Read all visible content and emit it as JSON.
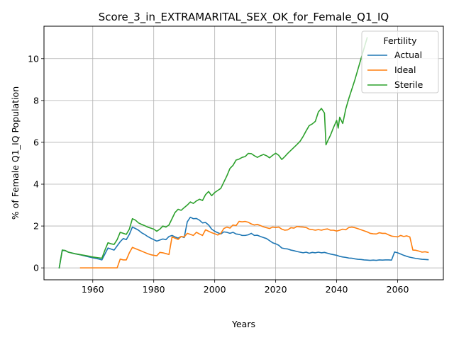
{
  "chart_data": {
    "type": "line",
    "title": "Score_3_in_EXTRAMARITAL_SEX_OK_for_Female_Q1_IQ",
    "xlabel": "Years",
    "ylabel": "% of Female Q1_IQ Population",
    "xlim": [
      1944,
      2075
    ],
    "ylim": [
      -0.57,
      11.55
    ],
    "xticks": [
      1960,
      1980,
      2000,
      2020,
      2040,
      2060
    ],
    "yticks": [
      0,
      2,
      4,
      6,
      8,
      10
    ],
    "grid": true,
    "legend": {
      "title": "Fertility",
      "placement": "top-right"
    },
    "series": [
      {
        "name": "Actual",
        "color": "#1f77b4",
        "points": [
          [
            1949,
            0.0
          ],
          [
            1950,
            0.85
          ],
          [
            1951,
            0.82
          ],
          [
            1952,
            0.75
          ],
          [
            1954,
            0.68
          ],
          [
            1956,
            0.62
          ],
          [
            1958,
            0.55
          ],
          [
            1960,
            0.48
          ],
          [
            1962,
            0.42
          ],
          [
            1963,
            0.38
          ],
          [
            1965,
            0.95
          ],
          [
            1966,
            0.9
          ],
          [
            1967,
            0.85
          ],
          [
            1968,
            1.05
          ],
          [
            1969,
            1.25
          ],
          [
            1970,
            1.4
          ],
          [
            1971,
            1.35
          ],
          [
            1972,
            1.6
          ],
          [
            1973,
            1.95
          ],
          [
            1974,
            1.88
          ],
          [
            1975,
            1.8
          ],
          [
            1976,
            1.68
          ],
          [
            1977,
            1.6
          ],
          [
            1978,
            1.5
          ],
          [
            1979,
            1.42
          ],
          [
            1980,
            1.35
          ],
          [
            1981,
            1.28
          ],
          [
            1982,
            1.33
          ],
          [
            1983,
            1.38
          ],
          [
            1984,
            1.35
          ],
          [
            1985,
            1.5
          ],
          [
            1986,
            1.55
          ],
          [
            1987,
            1.48
          ],
          [
            1988,
            1.42
          ],
          [
            1989,
            1.5
          ],
          [
            1990,
            1.45
          ],
          [
            1991,
            2.2
          ],
          [
            1992,
            2.42
          ],
          [
            1993,
            2.35
          ],
          [
            1994,
            2.36
          ],
          [
            1995,
            2.28
          ],
          [
            1996,
            2.15
          ],
          [
            1997,
            2.17
          ],
          [
            1998,
            2.05
          ],
          [
            1999,
            1.85
          ],
          [
            2000,
            1.75
          ],
          [
            2001,
            1.68
          ],
          [
            2002,
            1.62
          ],
          [
            2003,
            1.72
          ],
          [
            2004,
            1.7
          ],
          [
            2005,
            1.65
          ],
          [
            2006,
            1.7
          ],
          [
            2007,
            1.62
          ],
          [
            2008,
            1.6
          ],
          [
            2009,
            1.55
          ],
          [
            2010,
            1.55
          ],
          [
            2011,
            1.58
          ],
          [
            2012,
            1.65
          ],
          [
            2013,
            1.55
          ],
          [
            2014,
            1.56
          ],
          [
            2015,
            1.5
          ],
          [
            2016,
            1.45
          ],
          [
            2017,
            1.4
          ],
          [
            2018,
            1.3
          ],
          [
            2019,
            1.2
          ],
          [
            2020,
            1.15
          ],
          [
            2021,
            1.08
          ],
          [
            2022,
            0.95
          ],
          [
            2023,
            0.92
          ],
          [
            2024,
            0.9
          ],
          [
            2025,
            0.85
          ],
          [
            2026,
            0.82
          ],
          [
            2027,
            0.78
          ],
          [
            2028,
            0.75
          ],
          [
            2029,
            0.72
          ],
          [
            2030,
            0.75
          ],
          [
            2031,
            0.7
          ],
          [
            2032,
            0.74
          ],
          [
            2033,
            0.72
          ],
          [
            2034,
            0.75
          ],
          [
            2035,
            0.72
          ],
          [
            2036,
            0.74
          ],
          [
            2037,
            0.7
          ],
          [
            2038,
            0.66
          ],
          [
            2039,
            0.63
          ],
          [
            2040,
            0.6
          ],
          [
            2041,
            0.55
          ],
          [
            2042,
            0.52
          ],
          [
            2043,
            0.5
          ],
          [
            2044,
            0.47
          ],
          [
            2045,
            0.46
          ],
          [
            2046,
            0.43
          ],
          [
            2047,
            0.41
          ],
          [
            2048,
            0.4
          ],
          [
            2049,
            0.38
          ],
          [
            2050,
            0.37
          ],
          [
            2051,
            0.36
          ],
          [
            2052,
            0.37
          ],
          [
            2053,
            0.36
          ],
          [
            2054,
            0.38
          ],
          [
            2055,
            0.37
          ],
          [
            2056,
            0.38
          ],
          [
            2057,
            0.38
          ],
          [
            2058,
            0.37
          ],
          [
            2059,
            0.76
          ],
          [
            2060,
            0.72
          ],
          [
            2061,
            0.66
          ],
          [
            2062,
            0.6
          ],
          [
            2063,
            0.55
          ],
          [
            2064,
            0.51
          ],
          [
            2065,
            0.48
          ],
          [
            2066,
            0.45
          ],
          [
            2067,
            0.43
          ],
          [
            2068,
            0.41
          ],
          [
            2069,
            0.4
          ],
          [
            2070,
            0.39
          ]
        ]
      },
      {
        "name": "Ideal",
        "color": "#ff7f0e",
        "points": [
          [
            1956,
            0.0
          ],
          [
            1960,
            0.0
          ],
          [
            1965,
            0.0
          ],
          [
            1968,
            0.0
          ],
          [
            1969,
            0.42
          ],
          [
            1970,
            0.38
          ],
          [
            1971,
            0.38
          ],
          [
            1972,
            0.72
          ],
          [
            1973,
            0.98
          ],
          [
            1974,
            0.92
          ],
          [
            1975,
            0.86
          ],
          [
            1976,
            0.8
          ],
          [
            1977,
            0.74
          ],
          [
            1978,
            0.68
          ],
          [
            1979,
            0.63
          ],
          [
            1980,
            0.6
          ],
          [
            1981,
            0.58
          ],
          [
            1982,
            0.74
          ],
          [
            1983,
            0.72
          ],
          [
            1984,
            0.68
          ],
          [
            1985,
            0.64
          ],
          [
            1986,
            1.48
          ],
          [
            1987,
            1.42
          ],
          [
            1988,
            1.36
          ],
          [
            1989,
            1.5
          ],
          [
            1990,
            1.48
          ],
          [
            1991,
            1.65
          ],
          [
            1992,
            1.6
          ],
          [
            1993,
            1.55
          ],
          [
            1994,
            1.7
          ],
          [
            1995,
            1.62
          ],
          [
            1996,
            1.55
          ],
          [
            1997,
            1.82
          ],
          [
            1998,
            1.75
          ],
          [
            1999,
            1.68
          ],
          [
            2000,
            1.63
          ],
          [
            2001,
            1.57
          ],
          [
            2002,
            1.65
          ],
          [
            2003,
            1.88
          ],
          [
            2004,
            1.95
          ],
          [
            2005,
            1.9
          ],
          [
            2006,
            2.05
          ],
          [
            2007,
            2.02
          ],
          [
            2008,
            2.22
          ],
          [
            2009,
            2.2
          ],
          [
            2010,
            2.22
          ],
          [
            2011,
            2.18
          ],
          [
            2012,
            2.1
          ],
          [
            2013,
            2.05
          ],
          [
            2014,
            2.08
          ],
          [
            2015,
            2.02
          ],
          [
            2016,
            1.96
          ],
          [
            2017,
            1.92
          ],
          [
            2018,
            1.88
          ],
          [
            2019,
            1.95
          ],
          [
            2020,
            1.93
          ],
          [
            2021,
            1.95
          ],
          [
            2022,
            1.85
          ],
          [
            2023,
            1.8
          ],
          [
            2024,
            1.82
          ],
          [
            2025,
            1.92
          ],
          [
            2026,
            1.9
          ],
          [
            2027,
            1.98
          ],
          [
            2028,
            1.96
          ],
          [
            2029,
            1.95
          ],
          [
            2030,
            1.93
          ],
          [
            2031,
            1.85
          ],
          [
            2032,
            1.83
          ],
          [
            2033,
            1.8
          ],
          [
            2034,
            1.83
          ],
          [
            2035,
            1.8
          ],
          [
            2036,
            1.84
          ],
          [
            2037,
            1.86
          ],
          [
            2038,
            1.8
          ],
          [
            2039,
            1.8
          ],
          [
            2040,
            1.76
          ],
          [
            2041,
            1.8
          ],
          [
            2042,
            1.85
          ],
          [
            2043,
            1.82
          ],
          [
            2044,
            1.93
          ],
          [
            2045,
            1.95
          ],
          [
            2046,
            1.92
          ],
          [
            2047,
            1.87
          ],
          [
            2048,
            1.82
          ],
          [
            2049,
            1.77
          ],
          [
            2050,
            1.72
          ],
          [
            2051,
            1.65
          ],
          [
            2052,
            1.63
          ],
          [
            2053,
            1.62
          ],
          [
            2054,
            1.68
          ],
          [
            2055,
            1.65
          ],
          [
            2056,
            1.65
          ],
          [
            2057,
            1.58
          ],
          [
            2058,
            1.52
          ],
          [
            2059,
            1.5
          ],
          [
            2060,
            1.48
          ],
          [
            2061,
            1.55
          ],
          [
            2062,
            1.5
          ],
          [
            2063,
            1.53
          ],
          [
            2064,
            1.48
          ],
          [
            2065,
            0.85
          ],
          [
            2066,
            0.84
          ],
          [
            2067,
            0.8
          ],
          [
            2068,
            0.75
          ],
          [
            2069,
            0.77
          ],
          [
            2070,
            0.74
          ]
        ]
      },
      {
        "name": "Sterile",
        "color": "#2ca02c",
        "points": [
          [
            1949,
            0.0
          ],
          [
            1950,
            0.85
          ],
          [
            1951,
            0.83
          ],
          [
            1952,
            0.75
          ],
          [
            1954,
            0.68
          ],
          [
            1956,
            0.63
          ],
          [
            1958,
            0.58
          ],
          [
            1960,
            0.52
          ],
          [
            1962,
            0.48
          ],
          [
            1963,
            0.46
          ],
          [
            1964,
            0.85
          ],
          [
            1965,
            1.2
          ],
          [
            1966,
            1.15
          ],
          [
            1967,
            1.12
          ],
          [
            1968,
            1.35
          ],
          [
            1969,
            1.7
          ],
          [
            1970,
            1.65
          ],
          [
            1971,
            1.6
          ],
          [
            1972,
            1.85
          ],
          [
            1973,
            2.35
          ],
          [
            1974,
            2.28
          ],
          [
            1975,
            2.15
          ],
          [
            1976,
            2.08
          ],
          [
            1977,
            2.02
          ],
          [
            1978,
            1.95
          ],
          [
            1979,
            1.9
          ],
          [
            1980,
            1.85
          ],
          [
            1981,
            1.75
          ],
          [
            1982,
            1.85
          ],
          [
            1983,
            2.0
          ],
          [
            1984,
            1.95
          ],
          [
            1985,
            2.05
          ],
          [
            1986,
            2.35
          ],
          [
            1987,
            2.65
          ],
          [
            1988,
            2.8
          ],
          [
            1989,
            2.75
          ],
          [
            1990,
            2.88
          ],
          [
            1991,
            3.0
          ],
          [
            1992,
            3.15
          ],
          [
            1993,
            3.08
          ],
          [
            1994,
            3.2
          ],
          [
            1995,
            3.28
          ],
          [
            1996,
            3.22
          ],
          [
            1997,
            3.5
          ],
          [
            1998,
            3.65
          ],
          [
            1999,
            3.45
          ],
          [
            2000,
            3.6
          ],
          [
            2001,
            3.7
          ],
          [
            2002,
            3.8
          ],
          [
            2003,
            4.1
          ],
          [
            2004,
            4.4
          ],
          [
            2005,
            4.75
          ],
          [
            2006,
            4.9
          ],
          [
            2007,
            5.15
          ],
          [
            2008,
            5.2
          ],
          [
            2009,
            5.28
          ],
          [
            2010,
            5.32
          ],
          [
            2011,
            5.47
          ],
          [
            2012,
            5.46
          ],
          [
            2013,
            5.36
          ],
          [
            2014,
            5.28
          ],
          [
            2015,
            5.36
          ],
          [
            2016,
            5.42
          ],
          [
            2017,
            5.36
          ],
          [
            2018,
            5.26
          ],
          [
            2019,
            5.38
          ],
          [
            2020,
            5.48
          ],
          [
            2021,
            5.38
          ],
          [
            2022,
            5.18
          ],
          [
            2023,
            5.32
          ],
          [
            2024,
            5.48
          ],
          [
            2025,
            5.62
          ],
          [
            2026,
            5.76
          ],
          [
            2027,
            5.9
          ],
          [
            2028,
            6.05
          ],
          [
            2029,
            6.28
          ],
          [
            2030,
            6.55
          ],
          [
            2031,
            6.8
          ],
          [
            2032,
            6.88
          ],
          [
            2033,
            7.0
          ],
          [
            2034,
            7.45
          ],
          [
            2035,
            7.62
          ],
          [
            2036,
            7.4
          ],
          [
            2036.5,
            5.88
          ],
          [
            2037,
            6.05
          ],
          [
            2038,
            6.35
          ],
          [
            2039,
            6.72
          ],
          [
            2040,
            7.05
          ],
          [
            2040.5,
            6.68
          ],
          [
            2041,
            7.2
          ],
          [
            2042,
            6.9
          ],
          [
            2043,
            7.6
          ],
          [
            2044,
            8.1
          ],
          [
            2045,
            8.55
          ],
          [
            2046,
            9.0
          ],
          [
            2047,
            9.5
          ],
          [
            2048,
            10.0
          ],
          [
            2050,
            11.0
          ]
        ]
      }
    ]
  }
}
